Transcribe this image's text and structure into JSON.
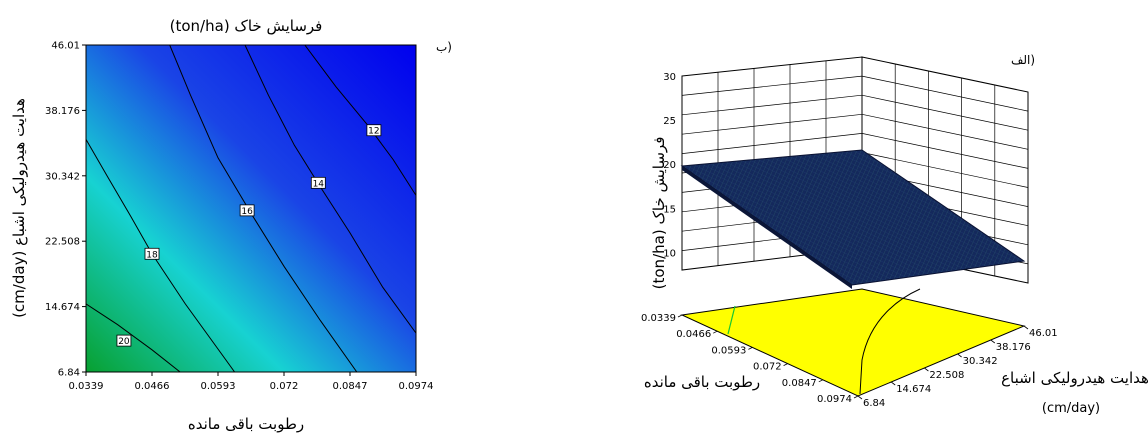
{
  "chart_data": [
    {
      "type": "contour",
      "panel_label": "(ب",
      "title": "فرسایش خاک (ton/ha)",
      "xlabel": "رطوبت باقی مانده",
      "ylabel": "هدایت هیدرولیکی اشباع (cm/day)",
      "x_ticks": [
        "0.0339",
        "0.0466",
        "0.0593",
        "0.072",
        "0.0847",
        "0.0974"
      ],
      "y_ticks": [
        "6.84",
        "14.674",
        "22.508",
        "30.342",
        "38.176",
        "46.01"
      ],
      "xlim": [
        0.0339,
        0.0974
      ],
      "ylim": [
        6.84,
        46.01
      ],
      "contours": [
        {
          "level": "20",
          "points": [
            [
              0.0339,
              15.0
            ],
            [
              0.04,
              12.5
            ],
            [
              0.0466,
              9.5
            ],
            [
              0.052,
              6.84
            ]
          ],
          "label_at": [
            0.0412,
            10.6
          ]
        },
        {
          "level": "18",
          "points": [
            [
              0.0339,
              34.7
            ],
            [
              0.038,
              30.3
            ],
            [
              0.0425,
              25.5
            ],
            [
              0.0466,
              21.0
            ],
            [
              0.053,
              15.0
            ],
            [
              0.06,
              9.0
            ],
            [
              0.0625,
              6.84
            ]
          ],
          "label_at": [
            0.0466,
            21.0
          ]
        },
        {
          "level": "16",
          "points": [
            [
              0.05,
              46.01
            ],
            [
              0.054,
              40.0
            ],
            [
              0.0593,
              32.5
            ],
            [
              0.066,
              25.5
            ],
            [
              0.072,
              19.5
            ],
            [
              0.079,
              13.0
            ],
            [
              0.086,
              6.84
            ]
          ],
          "label_at": [
            0.0649,
            26.2
          ]
        },
        {
          "level": "14",
          "points": [
            [
              0.0645,
              46.01
            ],
            [
              0.069,
              40.0
            ],
            [
              0.074,
              34.0
            ],
            [
              0.079,
              29.0
            ],
            [
              0.0847,
              23.5
            ],
            [
              0.091,
              17.0
            ],
            [
              0.0974,
              11.5
            ]
          ],
          "label_at": [
            0.0786,
            29.5
          ]
        },
        {
          "level": "12",
          "points": [
            [
              0.076,
              46.01
            ],
            [
              0.082,
              41.0
            ],
            [
              0.088,
              36.5
            ],
            [
              0.093,
              32.3
            ],
            [
              0.0974,
              28.0
            ]
          ],
          "label_at": [
            0.0893,
            35.8
          ]
        }
      ],
      "colormap": [
        "#08a030",
        "#17d2d2",
        "#1a44e6",
        "#0000ee"
      ]
    },
    {
      "type": "surface3d",
      "panel_label": "(الف",
      "zlabel": "فرسایش خاک (ton/ha)",
      "xlabel": "رطوبت باقی مانده",
      "ylabel": "هدایت هیدرولیکی اشباع",
      "ylabel_unit": "(cm/day)",
      "x_ticks": [
        "0.0339",
        "0.0466",
        "0.0593",
        "0.072",
        "0.0847",
        "0.0974"
      ],
      "y_ticks": [
        "6.84",
        "14.674",
        "22.508",
        "30.342",
        "38.176",
        "46.01"
      ],
      "z_ticks": [
        "10",
        "15",
        "20",
        "25",
        "30"
      ],
      "zlim": [
        8,
        30
      ],
      "surface_colors": [
        "#1d3470",
        "#0d1e4e"
      ],
      "floor_color": "#ffff00"
    }
  ]
}
